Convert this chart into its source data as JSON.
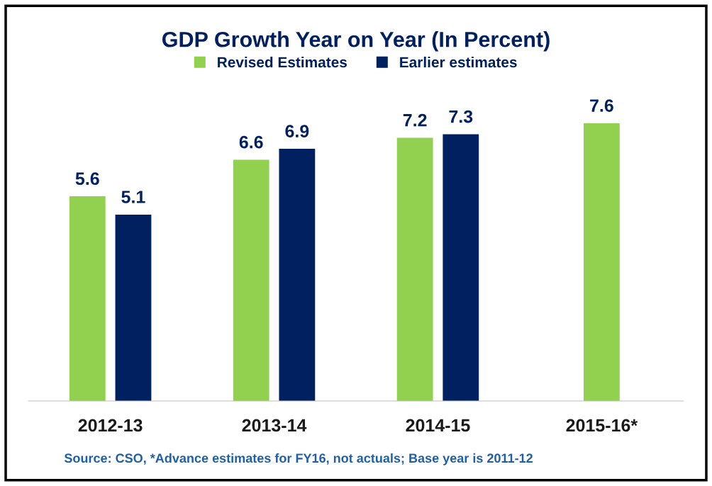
{
  "chart_data": {
    "type": "bar",
    "title": "GDP Growth Year on Year (In Percent)",
    "categories": [
      "2012-13",
      "2013-14",
      "2014-15",
      "2015-16*"
    ],
    "series": [
      {
        "name": "Revised Estimates",
        "color": "#92d050",
        "values": [
          5.6,
          6.6,
          7.2,
          7.6
        ]
      },
      {
        "name": "Earlier estimates",
        "color": "#002060",
        "values": [
          5.1,
          6.9,
          7.3,
          null
        ]
      }
    ],
    "data_labels": true,
    "grid": false,
    "legend": "top",
    "annotations": [
      "Source: CSO, *Advance estimates for FY16, not actuals; Base year is 2011-12"
    ]
  }
}
